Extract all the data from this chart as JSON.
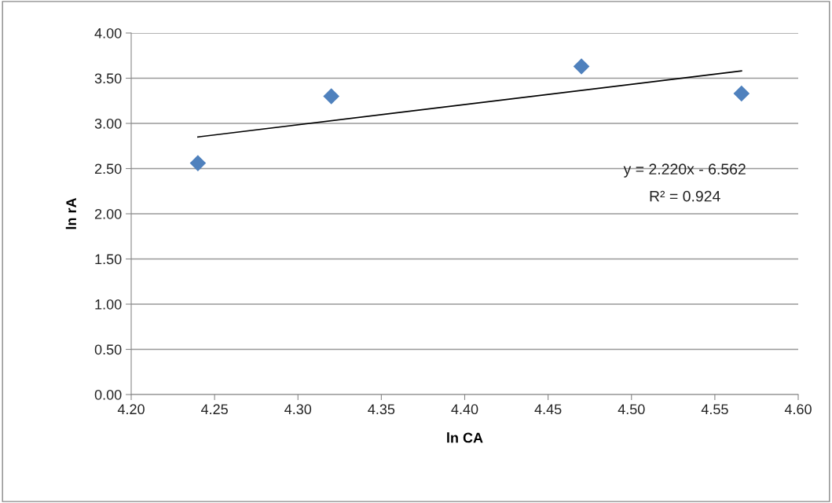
{
  "chart_data": {
    "type": "scatter",
    "xlabel": "ln CA",
    "ylabel": "ln rA",
    "series": [
      {
        "x": [
          4.24,
          4.32,
          4.47,
          4.566
        ],
        "values": [
          2.56,
          3.3,
          3.63,
          3.33
        ],
        "color": "#4f81bd",
        "marker": "diamond"
      },
      {
        "type": "line",
        "x": [
          4.24,
          4.566
        ],
        "values": [
          2.85,
          3.58
        ],
        "color": "#000000",
        "marker": "none",
        "line_style": "solid"
      }
    ],
    "xlim": [
      4.2,
      4.6
    ],
    "xticks": [
      {
        "value": 4.2,
        "label": "4.20"
      },
      {
        "value": 4.25,
        "label": "4.25"
      },
      {
        "value": 4.3,
        "label": "4.30"
      },
      {
        "value": 4.35,
        "label": "4.35"
      },
      {
        "value": 4.4,
        "label": "4.40"
      },
      {
        "value": 4.45,
        "label": "4.45"
      },
      {
        "value": 4.5,
        "label": "4.50"
      },
      {
        "value": 4.55,
        "label": "4.55"
      },
      {
        "value": 4.6,
        "label": "4.60"
      }
    ],
    "ylim": [
      0,
      4
    ],
    "yticks": [
      {
        "value": 0,
        "label": "0.00"
      },
      {
        "value": 0.5,
        "label": "0.50"
      },
      {
        "value": 1,
        "label": "1.00"
      },
      {
        "value": 1.5,
        "label": "1.50"
      },
      {
        "value": 2,
        "label": "2.00"
      },
      {
        "value": 2.5,
        "label": "2.50"
      },
      {
        "value": 3,
        "label": "3.00"
      },
      {
        "value": 3.5,
        "label": "3.50"
      },
      {
        "value": 4,
        "label": "4.00"
      }
    ],
    "grid": "y",
    "legend": false,
    "annotations": [
      "y = 2.220x - 6.562",
      "R² = 0.924"
    ]
  }
}
